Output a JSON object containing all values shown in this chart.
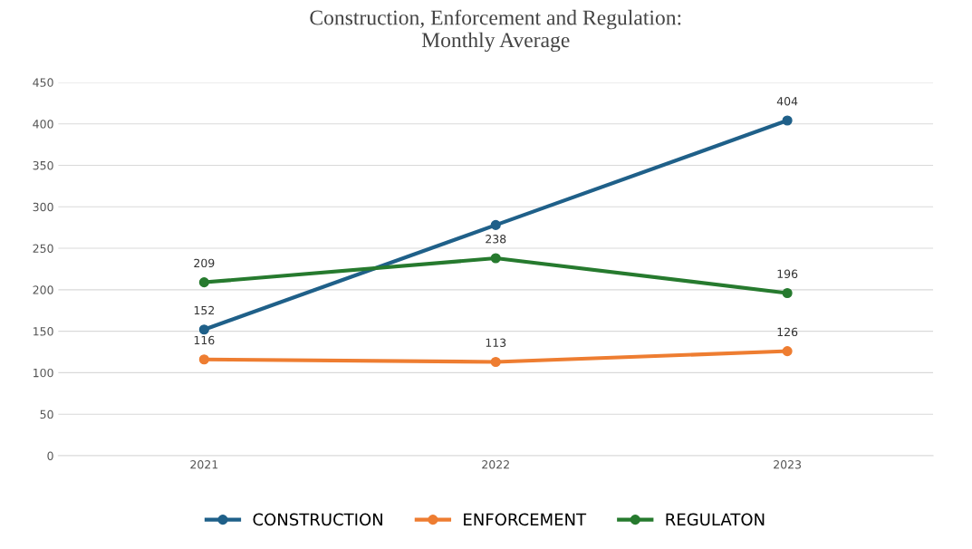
{
  "chart_data": {
    "type": "line",
    "title": "Construction, Enforcement and Regulation:\nMonthly Average",
    "categories": [
      "2021",
      "2022",
      "2023"
    ],
    "series": [
      {
        "name": "CONSTRUCTION",
        "color": "#1f6089",
        "values": [
          152,
          278,
          404
        ],
        "value_labels": [
          "152",
          null,
          "404"
        ]
      },
      {
        "name": "ENFORCEMENT",
        "color": "#ee7d31",
        "values": [
          116,
          113,
          126
        ],
        "value_labels": [
          "116",
          "113",
          "126"
        ]
      },
      {
        "name": "REGULATON",
        "color": "#267a2e",
        "values": [
          209,
          238,
          196
        ],
        "value_labels": [
          "209",
          "238",
          "196"
        ]
      }
    ],
    "ylim": [
      0,
      450
    ],
    "yticks": [
      0,
      50,
      100,
      150,
      200,
      250,
      300,
      350,
      400,
      450
    ],
    "grid": "y",
    "legend": "bottom",
    "marker": "circle",
    "line_style": "solid"
  }
}
